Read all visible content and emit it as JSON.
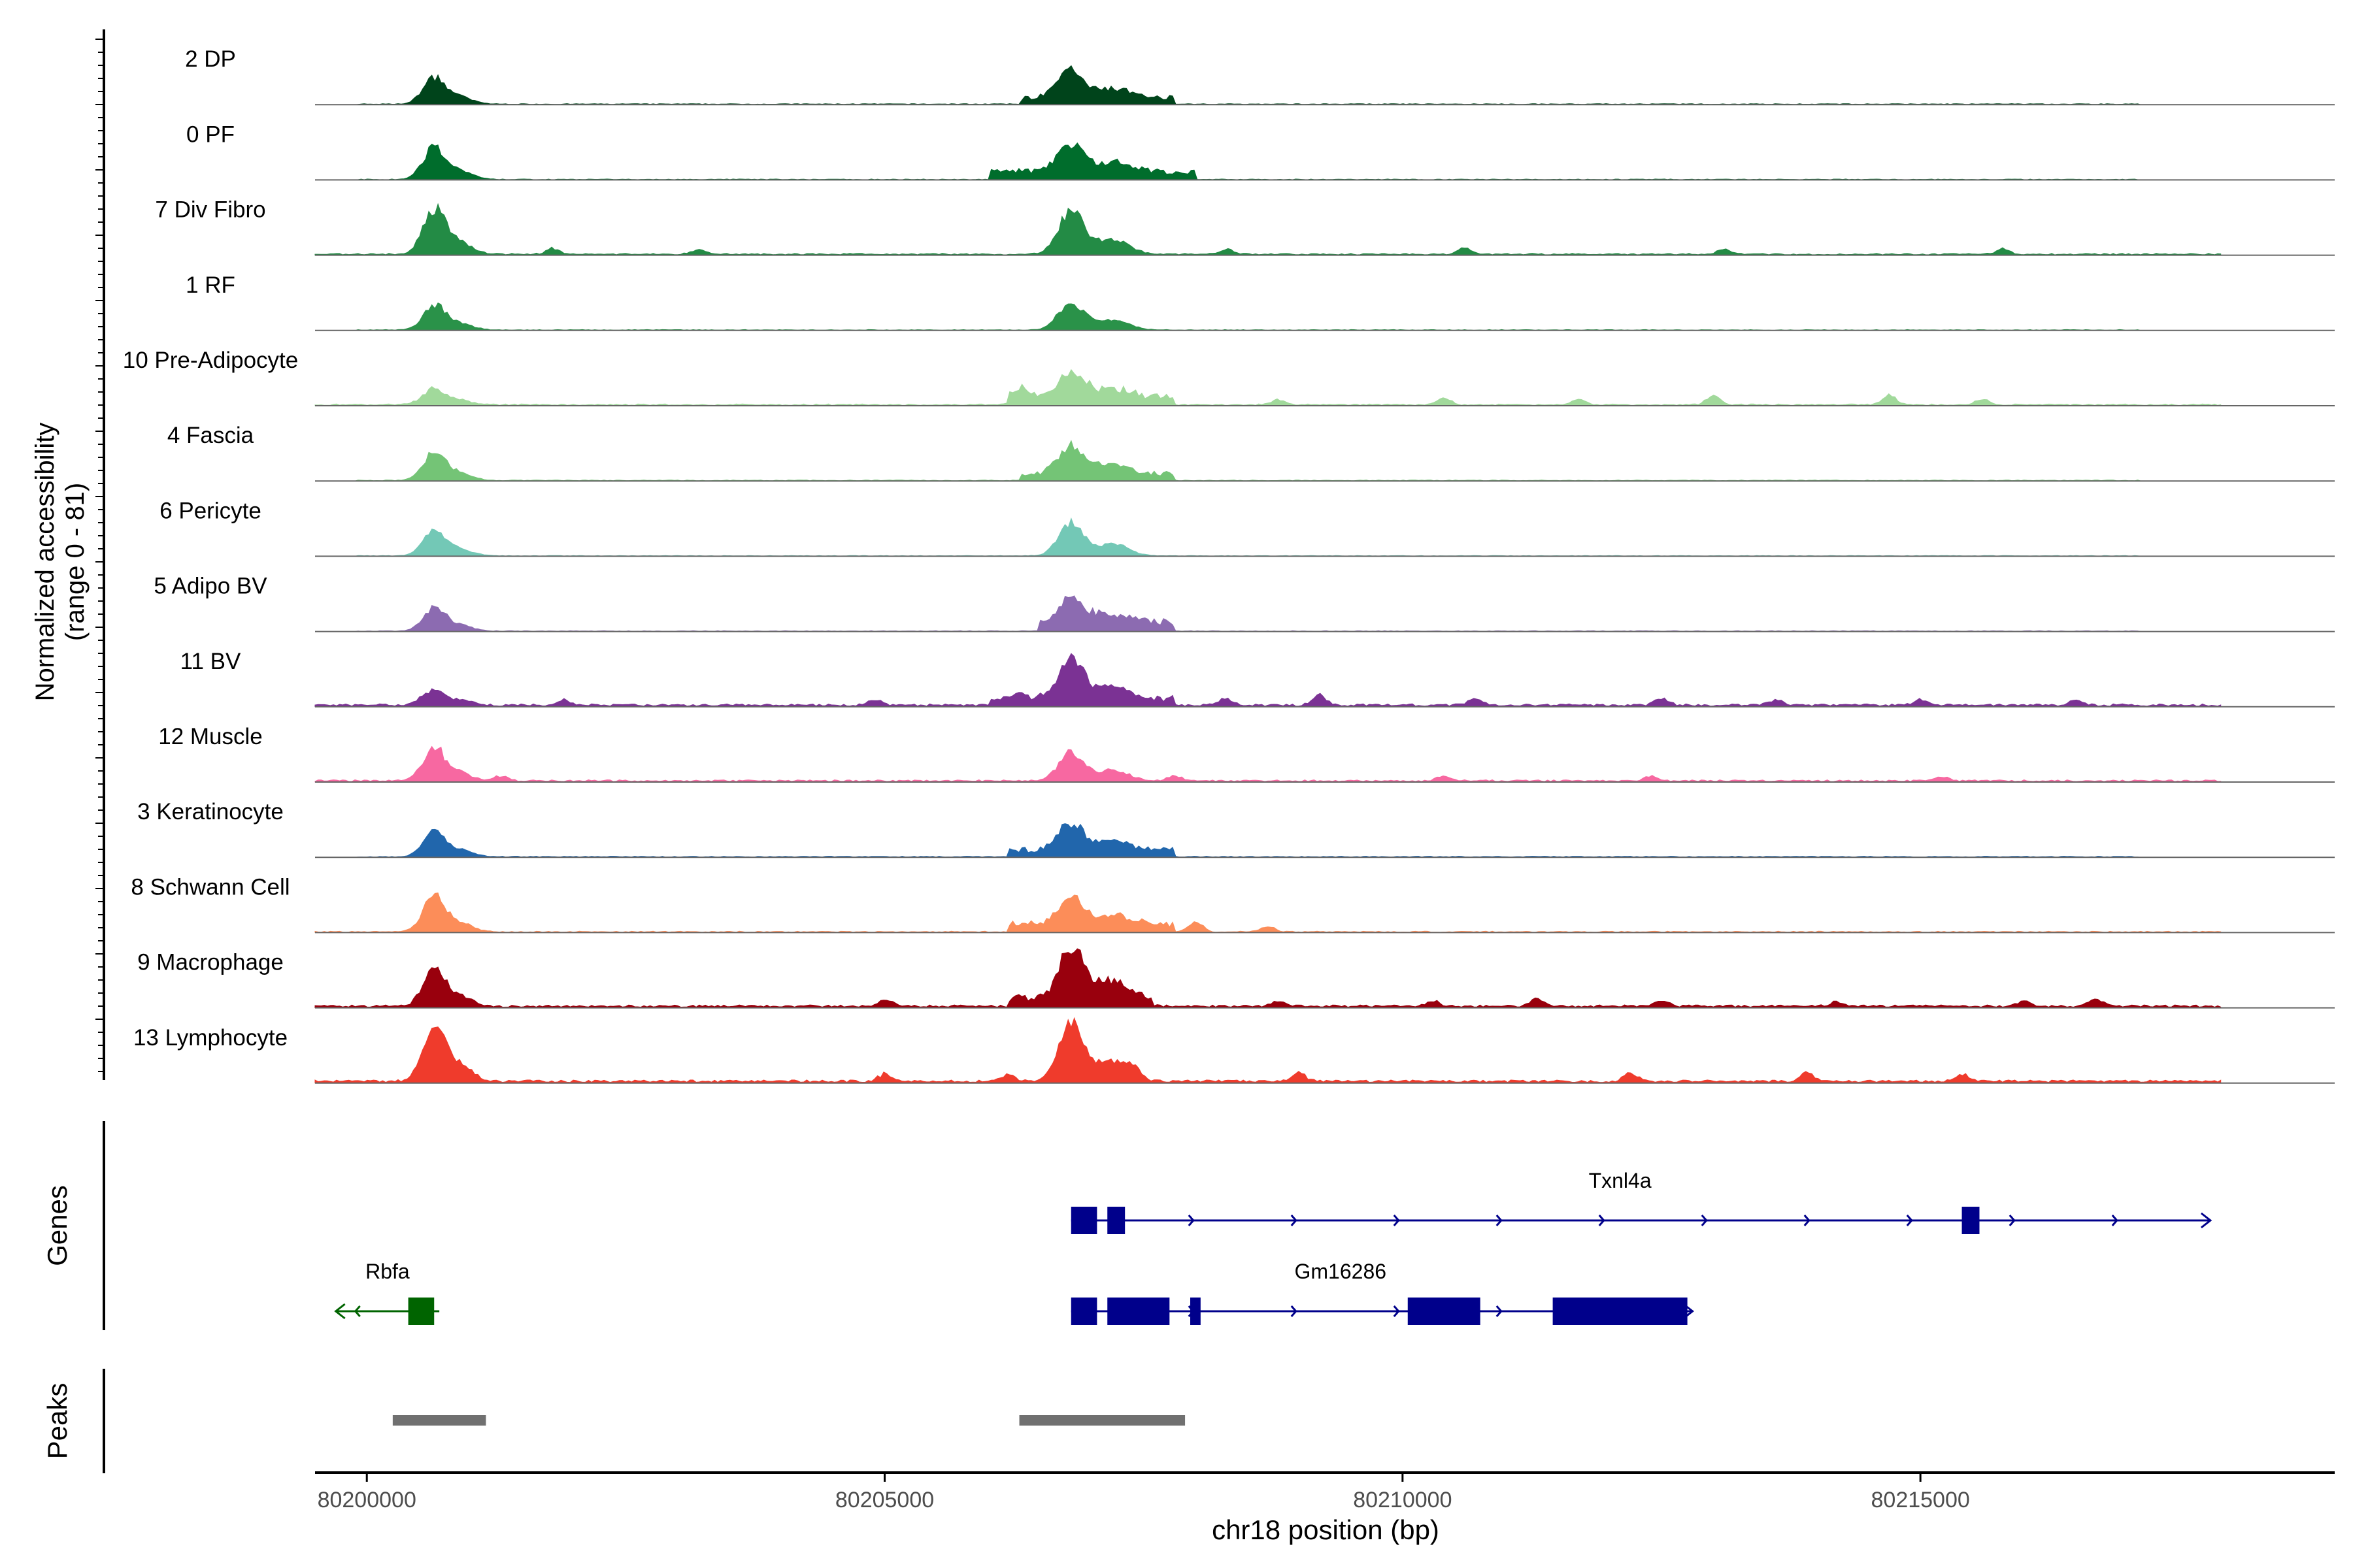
{
  "chart_data": {
    "type": "area",
    "title": "",
    "chromosome": "chr18",
    "xlabel": "chr18 position (bp)",
    "ylabel_line1": "Normalized accessibility",
    "ylabel_line2": "(range 0 - 81)",
    "y_range": [
      0,
      81
    ],
    "xlim": [
      80199500,
      80219000
    ],
    "x_ticks": [
      80200000,
      80205000,
      80210000,
      80215000
    ],
    "x_tick_labels": [
      "80200000",
      "80205000",
      "80210000",
      "80215000"
    ],
    "tracks": [
      {
        "name": "2 DP",
        "color": "#00441b",
        "peak1": 36,
        "peak2": 40,
        "noise": 0.9,
        "extra": [],
        "bands": [
          [
            80206300,
            80207800,
            10
          ]
        ]
      },
      {
        "name": "0 PF",
        "color": "#006d2c",
        "peak1": 44,
        "peak2": 40,
        "noise": 0.8,
        "extra": [],
        "bands": [
          [
            80206000,
            80208000,
            12
          ]
        ]
      },
      {
        "name": "7 Div Fibro",
        "color": "#238b45",
        "peak1": 62,
        "peak2": 60,
        "noise": 1.6,
        "extra": [
          [
            80201800,
            7
          ],
          [
            80203200,
            6
          ],
          [
            80208300,
            6
          ],
          [
            80210600,
            7
          ],
          [
            80213100,
            6
          ],
          [
            80215800,
            6
          ]
        ],
        "bands": []
      },
      {
        "name": "1 RF",
        "color": "#2a9249",
        "peak1": 34,
        "peak2": 38,
        "noise": 0.8,
        "extra": [],
        "bands": []
      },
      {
        "name": "10 Pre-Adipocyte",
        "color": "#a1d99b",
        "peak1": 22,
        "peak2": 36,
        "noise": 1.6,
        "extra": [
          [
            80206300,
            11
          ],
          [
            80208800,
            6
          ],
          [
            80210400,
            7
          ],
          [
            80211700,
            6
          ],
          [
            80213000,
            10
          ],
          [
            80214700,
            11
          ],
          [
            80215600,
            7
          ]
        ],
        "bands": [
          [
            80206200,
            80207800,
            12
          ]
        ]
      },
      {
        "name": "4 Fascia",
        "color": "#74c476",
        "peak1": 38,
        "peak2": 38,
        "noise": 0.9,
        "extra": [],
        "bands": [
          [
            80206300,
            80207800,
            10
          ]
        ]
      },
      {
        "name": "6 Pericyte",
        "color": "#73c8b6",
        "peak1": 36,
        "peak2": 46,
        "noise": 0.7,
        "extra": [],
        "bands": []
      },
      {
        "name": "5 Adipo BV",
        "color": "#8c6bb1",
        "peak1": 32,
        "peak2": 34,
        "noise": 0.7,
        "extra": [],
        "bands": [
          [
            80206500,
            80207800,
            14
          ]
        ]
      },
      {
        "name": "11 BV",
        "color": "#7b3294",
        "peak1": 22,
        "peak2": 54,
        "noise": 2.6,
        "extra": [
          [
            80201900,
            6
          ],
          [
            80204900,
            6
          ],
          [
            80206300,
            8
          ],
          [
            80208300,
            7
          ],
          [
            80209200,
            12
          ],
          [
            80210700,
            7
          ],
          [
            80212500,
            8
          ],
          [
            80213600,
            6
          ],
          [
            80215000,
            7
          ],
          [
            80216500,
            6
          ]
        ],
        "bands": [
          [
            80206000,
            80207800,
            10
          ]
        ]
      },
      {
        "name": "12 Muscle",
        "color": "#f768a1",
        "peak1": 44,
        "peak2": 40,
        "noise": 2.0,
        "extra": [
          [
            80201300,
            6
          ],
          [
            80207800,
            6
          ],
          [
            80210400,
            5
          ],
          [
            80212400,
            5
          ],
          [
            80215200,
            5
          ]
        ],
        "bands": []
      },
      {
        "name": "3 Keratinocyte",
        "color": "#2166ac",
        "peak1": 34,
        "peak2": 38,
        "noise": 1.0,
        "extra": [],
        "bands": [
          [
            80206200,
            80207800,
            10
          ]
        ]
      },
      {
        "name": "8 Schwann Cell",
        "color": "#fc8d59",
        "peak1": 48,
        "peak2": 36,
        "noise": 1.2,
        "extra": [
          [
            80208000,
            12
          ],
          [
            80208700,
            6
          ]
        ],
        "bands": [
          [
            80206200,
            80207800,
            12
          ]
        ]
      },
      {
        "name": "9 Macrophage",
        "color": "#99000d",
        "peak1": 50,
        "peak2": 72,
        "noise": 2.6,
        "extra": [
          [
            80205000,
            8
          ],
          [
            80208800,
            6
          ],
          [
            80210300,
            6
          ],
          [
            80211300,
            8
          ],
          [
            80212500,
            7
          ],
          [
            80214200,
            6
          ],
          [
            80216000,
            6
          ],
          [
            80216700,
            9
          ]
        ],
        "bands": [
          [
            80206200,
            80207600,
            12
          ]
        ]
      },
      {
        "name": "13 Lymphocyte",
        "color": "#ef3b2c",
        "peak1": 80,
        "peak2": 81,
        "noise": 2.8,
        "extra": [
          [
            80205000,
            8
          ],
          [
            80206200,
            8
          ],
          [
            80207400,
            10
          ],
          [
            80209000,
            10
          ],
          [
            80212200,
            10
          ],
          [
            80213900,
            9
          ],
          [
            80215400,
            8
          ]
        ],
        "bands": []
      }
    ],
    "genes_label": "Genes",
    "peaks_label": "Peaks",
    "genes": [
      {
        "name": "Txnl4a",
        "strand": "+",
        "color": "#00008b",
        "row": 1,
        "start": 80206800,
        "end": 80217800,
        "label_pos": 80212100,
        "exons": [
          [
            80206800,
            80207050
          ],
          [
            80207150,
            80207320
          ],
          [
            80215400,
            80215570
          ]
        ]
      },
      {
        "name": "Gm16286",
        "strand": "+",
        "color": "#00008b",
        "row": 2,
        "start": 80206800,
        "end": 80212800,
        "label_pos": 80209400,
        "exons": [
          [
            80206800,
            80207050
          ],
          [
            80207150,
            80207750
          ],
          [
            80207950,
            80208050
          ],
          [
            80210050,
            80210750
          ],
          [
            80211450,
            80212750
          ]
        ]
      },
      {
        "name": "Rbfa",
        "strand": "-",
        "color": "#006400",
        "row": 2,
        "start": 80199700,
        "end": 80200700,
        "label_pos": 80200200,
        "exons": [
          [
            80200400,
            80200650
          ]
        ]
      }
    ],
    "peaks": [
      [
        80200250,
        80201150
      ],
      [
        80206300,
        80207900
      ]
    ]
  }
}
